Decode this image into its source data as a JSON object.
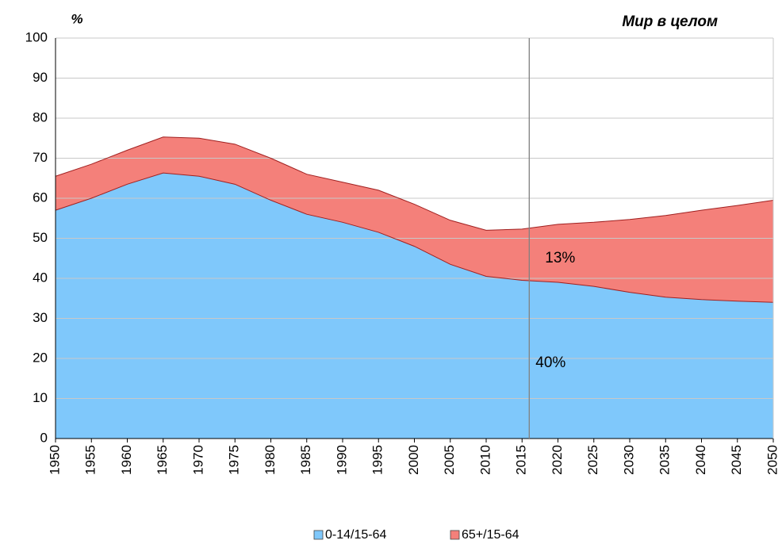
{
  "chart_data": {
    "type": "stacked_area",
    "title": "Мир в целом",
    "y_label": "%",
    "x": [
      1950,
      1955,
      1960,
      1965,
      1970,
      1975,
      1980,
      1985,
      1990,
      1995,
      2000,
      2005,
      2010,
      2015,
      2020,
      2025,
      2030,
      2035,
      2040,
      2045,
      2050
    ],
    "series": [
      {
        "name": "0-14/15-64",
        "color": "#7fc8fb",
        "values": [
          57,
          60,
          63.5,
          66.3,
          65.5,
          63.5,
          59.5,
          56,
          54,
          51.5,
          48,
          43.5,
          40.5,
          39.5,
          39,
          38,
          36.5,
          35.3,
          34.7,
          34.3,
          34
        ]
      },
      {
        "name": "65+/15-64",
        "color": "#f4807a",
        "values": [
          8.5,
          8.5,
          8.5,
          9,
          9.5,
          10,
          10.5,
          10,
          10,
          10.5,
          10.5,
          11,
          11.5,
          12.8,
          14.5,
          16,
          18.2,
          20.4,
          22.3,
          23.9,
          25.5
        ]
      }
    ],
    "annotations": [
      "13%",
      "40%"
    ],
    "vline_x": 2016,
    "xlim": [
      1950,
      2050
    ],
    "xticks": [
      1950,
      1955,
      1960,
      1965,
      1970,
      1975,
      1980,
      1985,
      1990,
      1995,
      2000,
      2005,
      2010,
      2015,
      2020,
      2025,
      2030,
      2035,
      2040,
      2045,
      2050
    ],
    "ylim": [
      0,
      100
    ],
    "yticks": [
      0,
      10,
      20,
      30,
      40,
      50,
      60,
      70,
      80,
      90,
      100
    ],
    "grid": true,
    "legend": "bottom"
  }
}
